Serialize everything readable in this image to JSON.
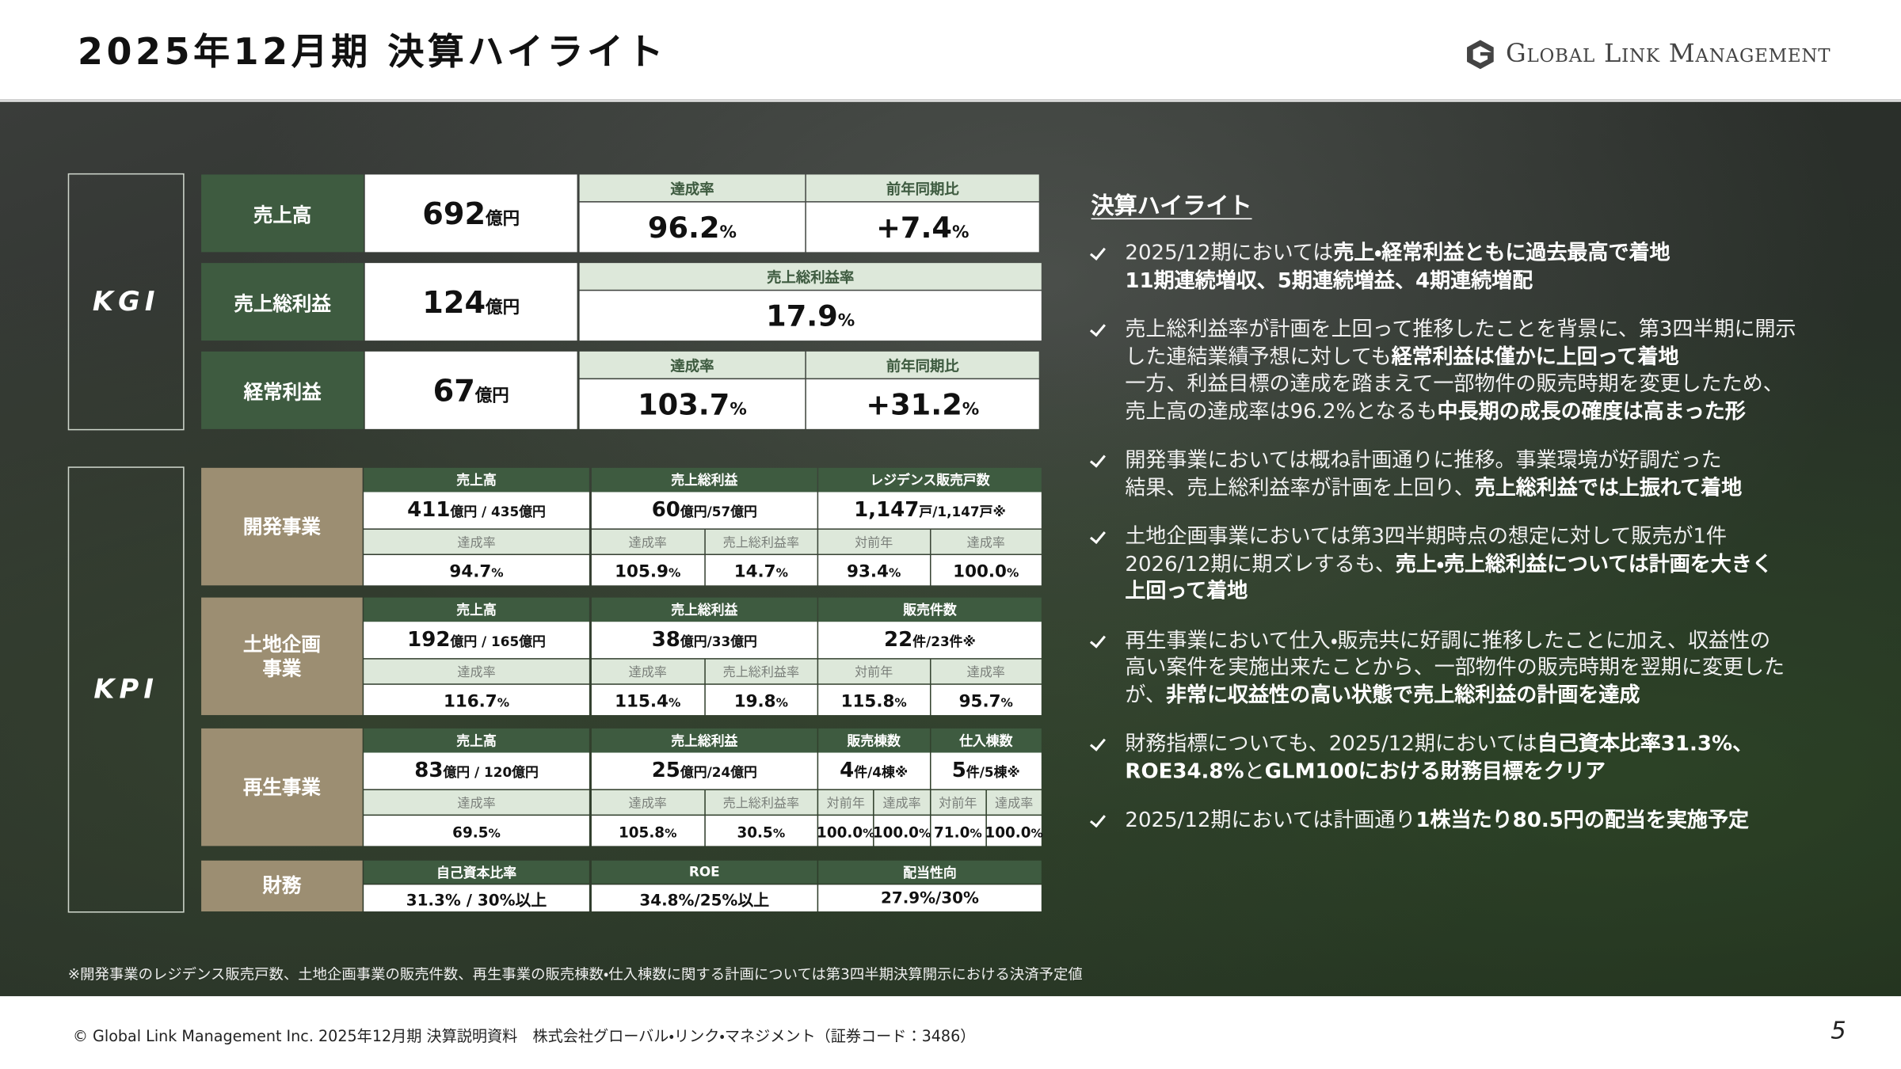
{
  "header": {
    "title": "2025年12月期 決算ハイライト",
    "logo": "Global Link Management"
  },
  "kgi": {
    "label": "KGI",
    "rows": [
      {
        "label": "売上高",
        "value": {
          "main": "692",
          "sub": "億円"
        },
        "metrics": [
          {
            "label": "達成率",
            "value": {
              "main": "96.2",
              "sub": "%"
            }
          },
          {
            "label": "前年同期比",
            "value": {
              "main": "+7.4",
              "sub": "%"
            }
          }
        ]
      },
      {
        "label": "売上総利益",
        "value": {
          "main": "124",
          "sub": "億円"
        },
        "metrics": [
          {
            "label": "売上総利益率",
            "value": {
              "main": "17.9",
              "sub": "%"
            }
          }
        ]
      },
      {
        "label": "経常利益",
        "value": {
          "main": "67",
          "sub": "億円"
        },
        "metrics": [
          {
            "label": "達成率",
            "value": {
              "main": "103.7",
              "sub": "%"
            }
          },
          {
            "label": "前年同期比",
            "value": {
              "main": "+31.2",
              "sub": "%"
            }
          }
        ]
      }
    ]
  },
  "kpi": {
    "label": "KPI",
    "segments": [
      {
        "label": "開発事業",
        "groups": [
          {
            "header": "売上高",
            "value": {
              "main": "411",
              "sub": "億円 / 435億円"
            },
            "subs": [
              {
                "label": "達成率",
                "value": {
                  "main": "94.7",
                  "sub": "%"
                }
              }
            ]
          },
          {
            "header": "売上総利益",
            "value": {
              "main": "60",
              "sub": "億円/57億円"
            },
            "subs": [
              {
                "label": "達成率",
                "value": {
                  "main": "105.9",
                  "sub": "%"
                }
              },
              {
                "label": "売上総利益率",
                "value": {
                  "main": "14.7",
                  "sub": "%"
                }
              }
            ]
          },
          {
            "header": "レジデンス販売戸数",
            "value": {
              "main": "1,147",
              "sub": "戸/1,147戸※"
            },
            "subs": [
              {
                "label": "対前年",
                "value": {
                  "main": "93.4",
                  "sub": "%"
                }
              },
              {
                "label": "達成率",
                "value": {
                  "main": "100.0",
                  "sub": "%"
                }
              }
            ]
          }
        ]
      },
      {
        "label": "土地企画事業",
        "groups": [
          {
            "header": "売上高",
            "value": {
              "main": "192",
              "sub": "億円 / 165億円"
            },
            "subs": [
              {
                "label": "達成率",
                "value": {
                  "main": "116.7",
                  "sub": "%"
                }
              }
            ]
          },
          {
            "header": "売上総利益",
            "value": {
              "main": "38",
              "sub": "億円/33億円"
            },
            "subs": [
              {
                "label": "達成率",
                "value": {
                  "main": "115.4",
                  "sub": "%"
                }
              },
              {
                "label": "売上総利益率",
                "value": {
                  "main": "19.8",
                  "sub": "%"
                }
              }
            ]
          },
          {
            "header": "販売件数",
            "value": {
              "main": "22",
              "sub": "件/23件※"
            },
            "subs": [
              {
                "label": "対前年",
                "value": {
                  "main": "115.8",
                  "sub": "%"
                }
              },
              {
                "label": "達成率",
                "value": {
                  "main": "95.7",
                  "sub": "%"
                }
              }
            ]
          }
        ]
      },
      {
        "label": "再生事業",
        "groups": [
          {
            "header": "売上高",
            "value": {
              "main": "83",
              "sub": "億円 / 120億円"
            },
            "subs": [
              {
                "label": "達成率",
                "value": {
                  "main": "69.5",
                  "sub": "%"
                }
              }
            ]
          },
          {
            "header": "売上総利益",
            "value": {
              "main": "25",
              "sub": "億円/24億円"
            },
            "subs": [
              {
                "label": "達成率",
                "value": {
                  "main": "105.8",
                  "sub": "%"
                }
              },
              {
                "label": "売上総利益率",
                "value": {
                  "main": "30.5",
                  "sub": "%"
                }
              }
            ]
          },
          {
            "header": "販売棟数",
            "value": {
              "main": "4",
              "sub": "件/4棟※"
            },
            "subs": [
              {
                "label": "対前年",
                "value": {
                  "main": "100.0",
                  "sub": "%"
                }
              },
              {
                "label": "達成率",
                "value": {
                  "main": "100.0",
                  "sub": "%"
                }
              }
            ]
          },
          {
            "header": "仕入棟数",
            "value": {
              "main": "5",
              "sub": "件/5棟※"
            },
            "subs": [
              {
                "label": "対前年",
                "value": {
                  "main": "71.0",
                  "sub": "%"
                }
              },
              {
                "label": "達成率",
                "value": {
                  "main": "100.0",
                  "sub": "%"
                }
              }
            ]
          }
        ]
      }
    ],
    "finance": {
      "label": "財務",
      "items": [
        {
          "header": "自己資本比率",
          "value": "31.3% / 30%以上"
        },
        {
          "header": "ROE",
          "value": "34.8%/25%以上"
        },
        {
          "header": "配当性向",
          "value": "27.9%/30%"
        }
      ]
    }
  },
  "highlights": {
    "title": "決算ハイライト",
    "bullets": [
      [
        [
          {
            "text": "2025/12期においては",
            "bold": false
          },
          {
            "text": "売上・経常利益ともに過去最高で着地",
            "bold": true
          }
        ],
        [
          {
            "text": "11期連続増収、5期連続増益、4期連続増配",
            "bold": true
          }
        ]
      ],
      [
        [
          {
            "text": "売上総利益率が計画を上回って推移したことを背景に、第3四半期に開示",
            "bold": false
          }
        ],
        [
          {
            "text": "した連結業績予想に対しても",
            "bold": false
          },
          {
            "text": "経常利益は僅かに上回って着地",
            "bold": true
          }
        ],
        [
          {
            "text": "一方、利益目標の達成を踏まえて一部物件の販売時期を変更したため、",
            "bold": false
          }
        ],
        [
          {
            "text": "売上高の達成率は96.2%となるも",
            "bold": false
          },
          {
            "text": "中長期の成長の確度は高まった形",
            "bold": true
          }
        ]
      ],
      [
        [
          {
            "text": "開発事業においては概ね計画通りに推移。事業環境が好調だった",
            "bold": false
          }
        ],
        [
          {
            "text": "結果、売上総利益率が計画を上回り、",
            "bold": false
          },
          {
            "text": "売上総利益では上振れて着地",
            "bold": true
          }
        ]
      ],
      [
        [
          {
            "text": "土地企画事業においては第3四半期時点の想定に対して販売が1件",
            "bold": false
          }
        ],
        [
          {
            "text": "2026/12期に期ズレするも、",
            "bold": false
          },
          {
            "text": "売上・売上総利益については計画を大きく",
            "bold": true
          }
        ],
        [
          {
            "text": "上回って着地",
            "bold": true
          }
        ]
      ],
      [
        [
          {
            "text": "再生事業において仕入・販売共に好調に推移したことに加え、収益性の",
            "bold": false
          }
        ],
        [
          {
            "text": "高い案件を実施出来たことから、一部物件の販売時期を翌期に変更した",
            "bold": false
          }
        ],
        [
          {
            "text": "が、",
            "bold": false
          },
          {
            "text": "非常に収益性の高い状態で売上総利益の計画を達成",
            "bold": true
          }
        ]
      ],
      [
        [
          {
            "text": "財務指標についても、2025/12期においては",
            "bold": false
          },
          {
            "text": "自己資本比率31.3%、",
            "bold": true
          }
        ],
        [
          {
            "text": "ROE34.8%",
            "bold": true
          },
          {
            "text": "と",
            "bold": false
          },
          {
            "text": "GLM100における財務目標をクリア",
            "bold": true
          }
        ]
      ],
      [
        [
          {
            "text": "2025/12期においては計画通り",
            "bold": false
          },
          {
            "text": "1株当たり80.5円の配当を実施予定",
            "bold": true
          }
        ]
      ]
    ]
  },
  "footnote": "※開発事業のレジデンス販売戸数、土地企画事業の販売件数、再生事業の販売棟数・仕入棟数に関する計画については第3四半期決算開示における決済予定値",
  "footer": {
    "copyright": "© Global Link Management Inc. 2025年12月期 決算説明資料　株式会社グローバル・リンク・マネジメント（証券コード：3486）",
    "page": "5"
  }
}
